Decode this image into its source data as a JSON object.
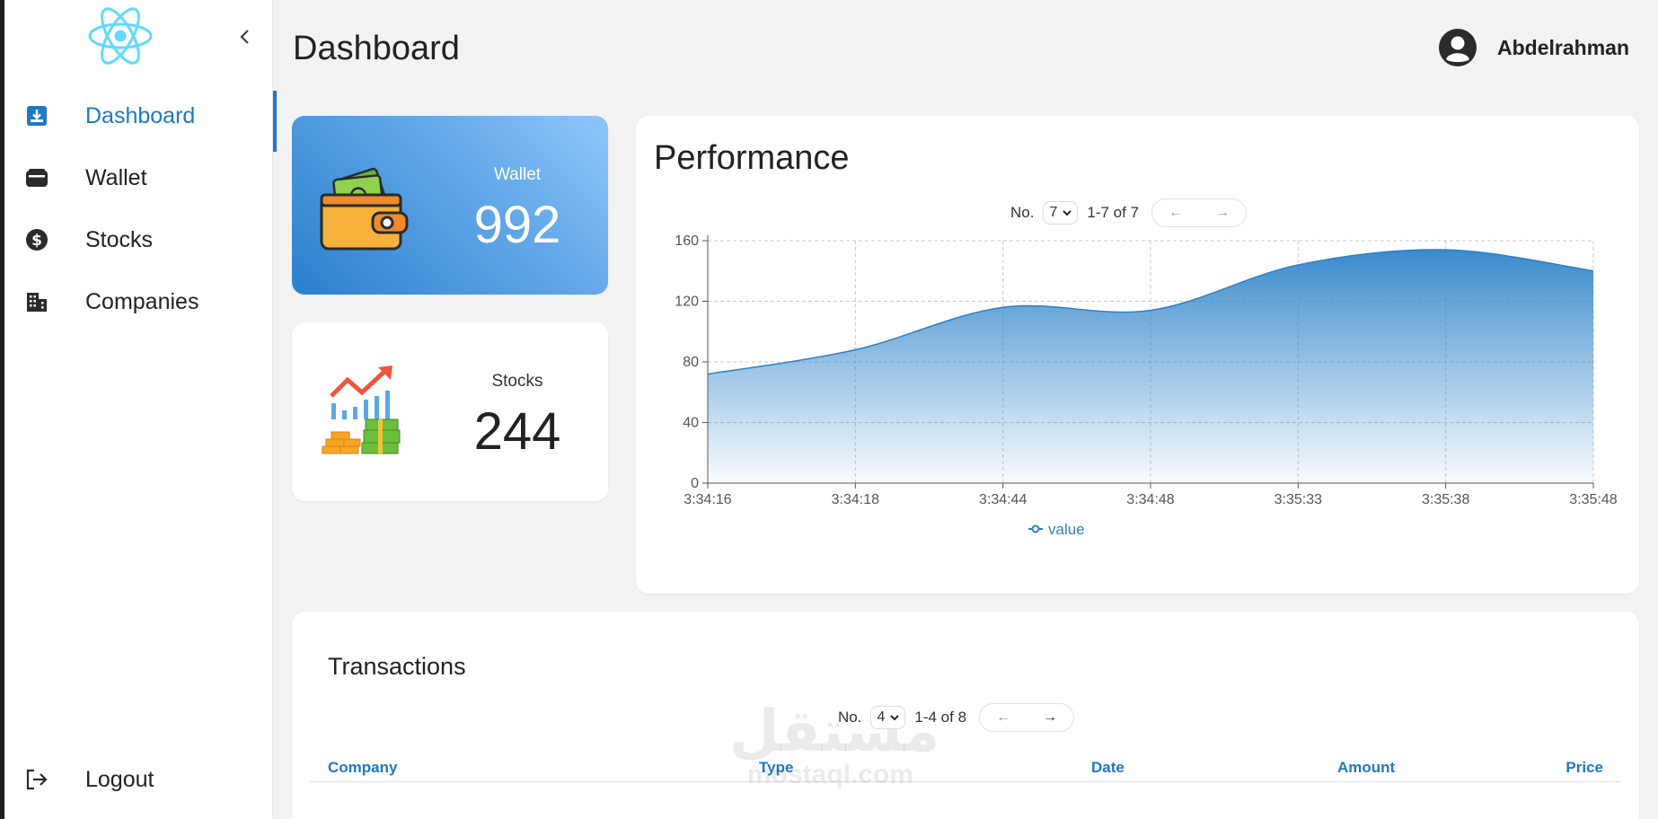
{
  "sidebar": {
    "items": [
      {
        "label": "Dashboard",
        "icon": "download-box-icon",
        "active": true
      },
      {
        "label": "Wallet",
        "icon": "wallet-icon",
        "active": false
      },
      {
        "label": "Stocks",
        "icon": "dollar-circle-icon",
        "active": false
      },
      {
        "label": "Companies",
        "icon": "buildings-icon",
        "active": false
      }
    ],
    "logout_label": "Logout"
  },
  "header": {
    "title": "Dashboard",
    "user_name": "Abdelrahman"
  },
  "stats": {
    "wallet": {
      "label": "Wallet",
      "value": "992"
    },
    "stocks": {
      "label": "Stocks",
      "value": "244"
    }
  },
  "performance": {
    "title": "Performance",
    "pager": {
      "prefix": "No.",
      "selected": "7",
      "range": "1-7 of 7",
      "prev": "←",
      "next": "→"
    }
  },
  "transactions": {
    "title": "Transactions",
    "pager": {
      "prefix": "No.",
      "selected": "4",
      "range": "1-4 of 8",
      "prev": "←",
      "next": "→"
    },
    "columns": [
      "Company",
      "Type",
      "Date",
      "Amount",
      "Price"
    ]
  },
  "watermark": {
    "arabic": "مستقل",
    "latin": "mostaql.com"
  },
  "colors": {
    "accent": "#1f78c4",
    "area_top": "#3a8bcd"
  },
  "chart_data": {
    "type": "area",
    "title": "",
    "xlabel": "",
    "ylabel": "",
    "x": [
      "3:34:16",
      "3:34:18",
      "3:34:44",
      "3:34:48",
      "3:35:33",
      "3:35:38",
      "3:35:48"
    ],
    "series": [
      {
        "name": "value",
        "values": [
          72,
          88,
          116,
          114,
          144,
          154,
          140
        ]
      }
    ],
    "ylim": [
      0,
      160
    ],
    "yticks": [
      "0",
      "40",
      "80",
      "120",
      "160"
    ],
    "grid": true,
    "legend": "bottom-center"
  }
}
